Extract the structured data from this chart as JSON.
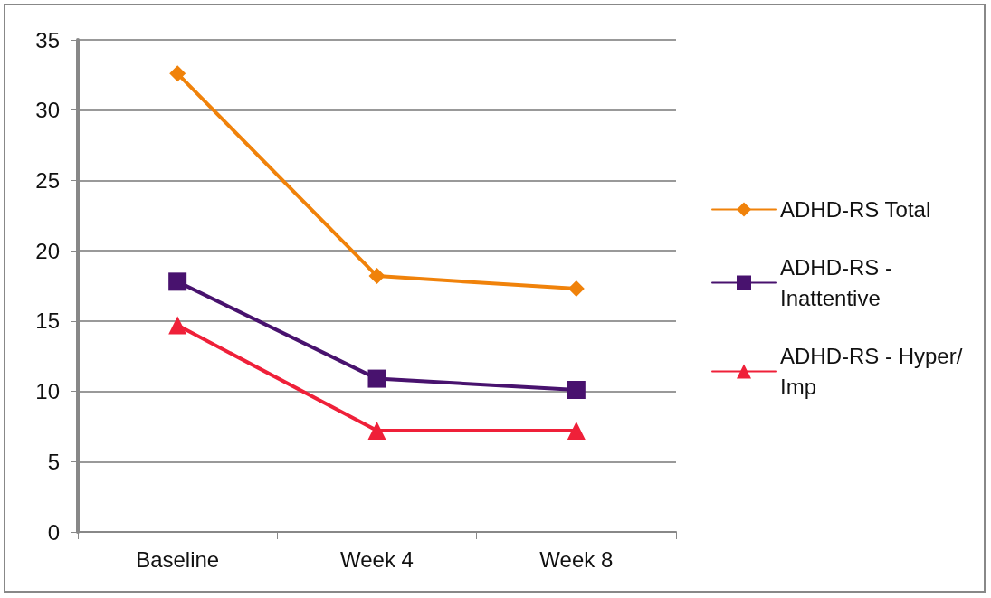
{
  "chart_data": {
    "type": "line",
    "categories": [
      "Baseline",
      "Week 4",
      "Week 8"
    ],
    "series": [
      {
        "name": "ADHD-RS Total",
        "color": "#f0820a",
        "marker": "diamond",
        "values": [
          32.6,
          18.2,
          17.3
        ]
      },
      {
        "name": "ADHD-RS - Inattentive",
        "color": "#48126e",
        "marker": "square",
        "values": [
          17.8,
          10.9,
          10.1
        ]
      },
      {
        "name": "ADHD-RS - Hyper/Imp",
        "color": "#ef2039",
        "marker": "triangle",
        "values": [
          14.7,
          7.2,
          7.2
        ]
      }
    ],
    "ylim": [
      0,
      35
    ],
    "yticks": [
      0,
      5,
      10,
      15,
      20,
      25,
      30,
      35
    ],
    "grid": "y",
    "legend": "right",
    "line_style": "solid"
  }
}
